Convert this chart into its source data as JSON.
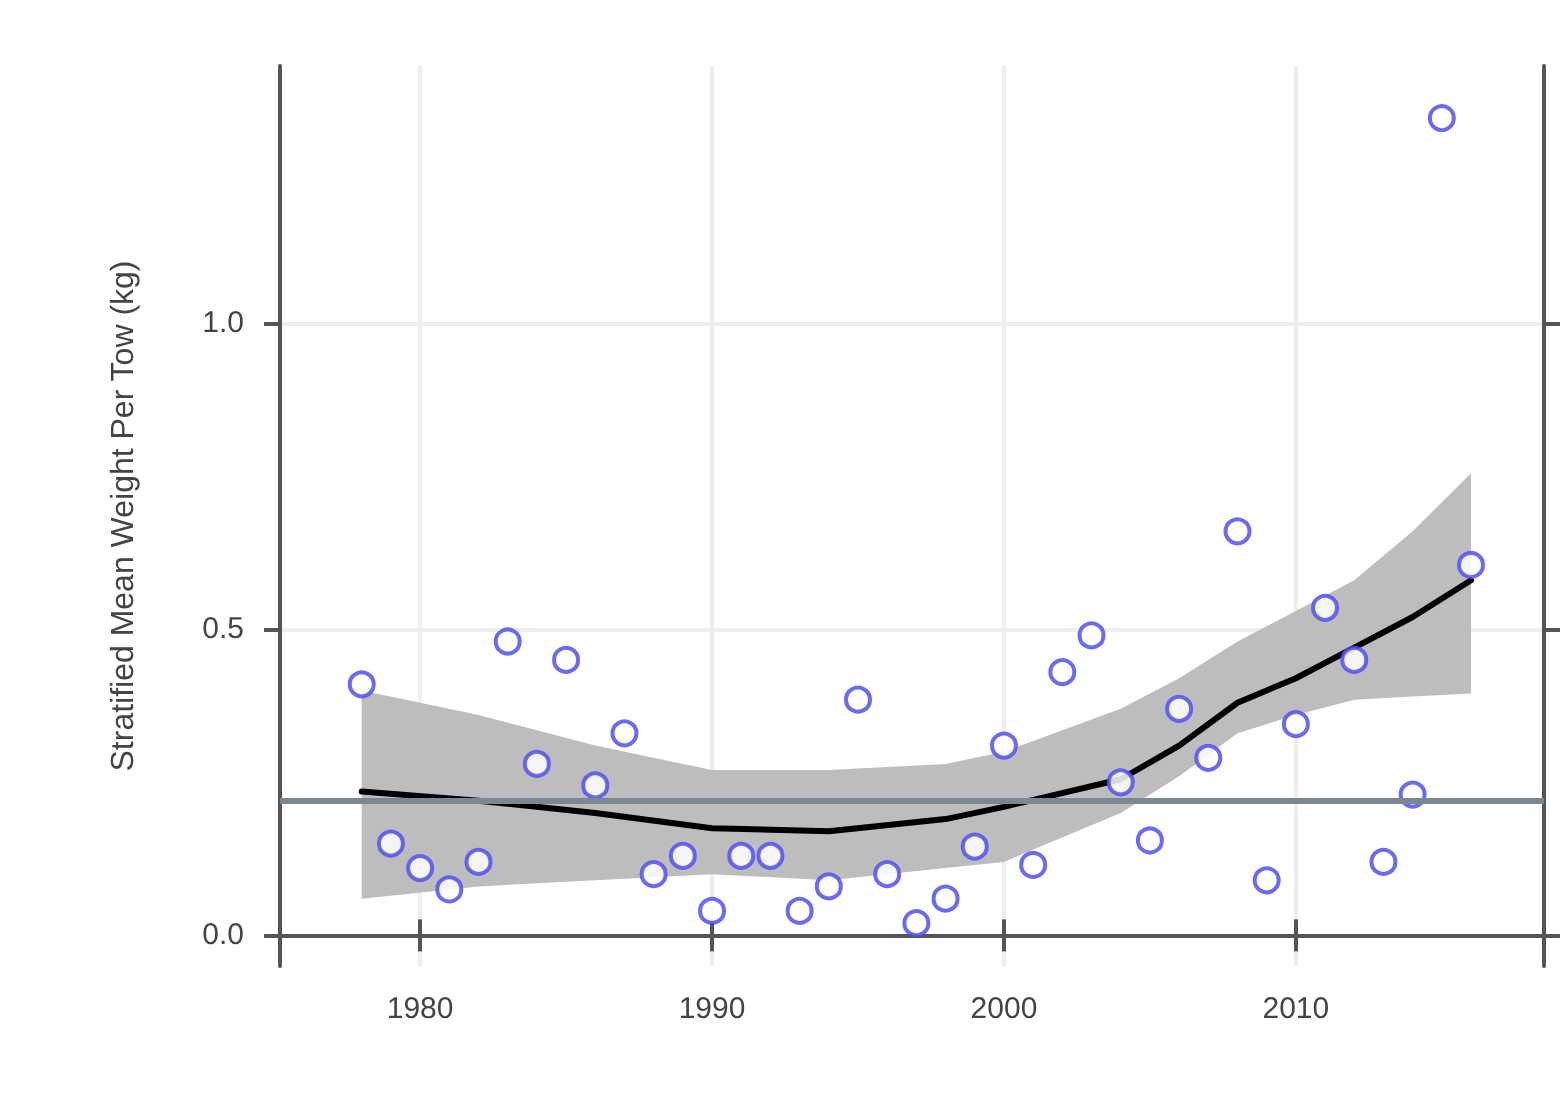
{
  "chart_data": {
    "type": "scatter",
    "ylabel": "Stratified Mean Weight Per Tow (kg)",
    "xlim": [
      1975.2,
      2018.5
    ],
    "xticks": [
      1980,
      1990,
      2000,
      2010
    ],
    "ylim": [
      -0.05,
      1.42
    ],
    "yticks": [
      {
        "value": 0,
        "label": "0.0"
      },
      {
        "value": 0.5,
        "label": "0.5"
      },
      {
        "value": 1,
        "label": "1.0"
      }
    ],
    "grid": true,
    "ref_lines": [
      {
        "axis": "y",
        "value": 0.222,
        "color": "#7a8896"
      }
    ],
    "series": [
      {
        "type": "line",
        "color": "#000000",
        "marker": "none",
        "x": [
          1978,
          1982,
          1986,
          1990,
          1994,
          1998,
          2000,
          2004,
          2006,
          2008,
          2010,
          2012,
          2014,
          2016
        ],
        "values": [
          0.235,
          0.22,
          0.2,
          0.175,
          0.17,
          0.19,
          0.21,
          0.255,
          0.31,
          0.38,
          0.42,
          0.47,
          0.52,
          0.58
        ],
        "lower": [
          0.06,
          0.08,
          0.09,
          0.1,
          0.09,
          0.11,
          0.12,
          0.2,
          0.26,
          0.33,
          0.36,
          0.385,
          0.39,
          0.395
        ],
        "upper": [
          0.4,
          0.36,
          0.31,
          0.27,
          0.27,
          0.28,
          0.3,
          0.37,
          0.42,
          0.48,
          0.53,
          0.58,
          0.66,
          0.755
        ]
      },
      {
        "color": "#5050f0",
        "marker": "circle",
        "x": [
          1978,
          1979,
          1980,
          1981,
          1982,
          1983,
          1984,
          1985,
          1986,
          1987,
          1988,
          1989,
          1990,
          1991,
          1992,
          1993,
          1994,
          1995,
          1996,
          1997,
          1998,
          1999,
          2000,
          2001,
          2002,
          2003,
          2004,
          2005,
          2006,
          2007,
          2008,
          2009,
          2010,
          2011,
          2012,
          2013,
          2014,
          2015,
          2016
        ],
        "values": [
          0.41,
          0.15,
          0.11,
          0.075,
          0.12,
          0.48,
          0.28,
          0.45,
          0.245,
          0.33,
          0.1,
          0.13,
          0.04,
          0.13,
          0.13,
          0.04,
          0.08,
          0.385,
          0.1,
          0.02,
          0.06,
          0.145,
          0.31,
          0.115,
          0.43,
          0.49,
          0.25,
          0.155,
          0.37,
          0.29,
          0.66,
          0.09,
          0.345,
          0.535,
          0.45,
          0.12,
          0.23,
          1.335,
          0.605
        ]
      }
    ]
  }
}
